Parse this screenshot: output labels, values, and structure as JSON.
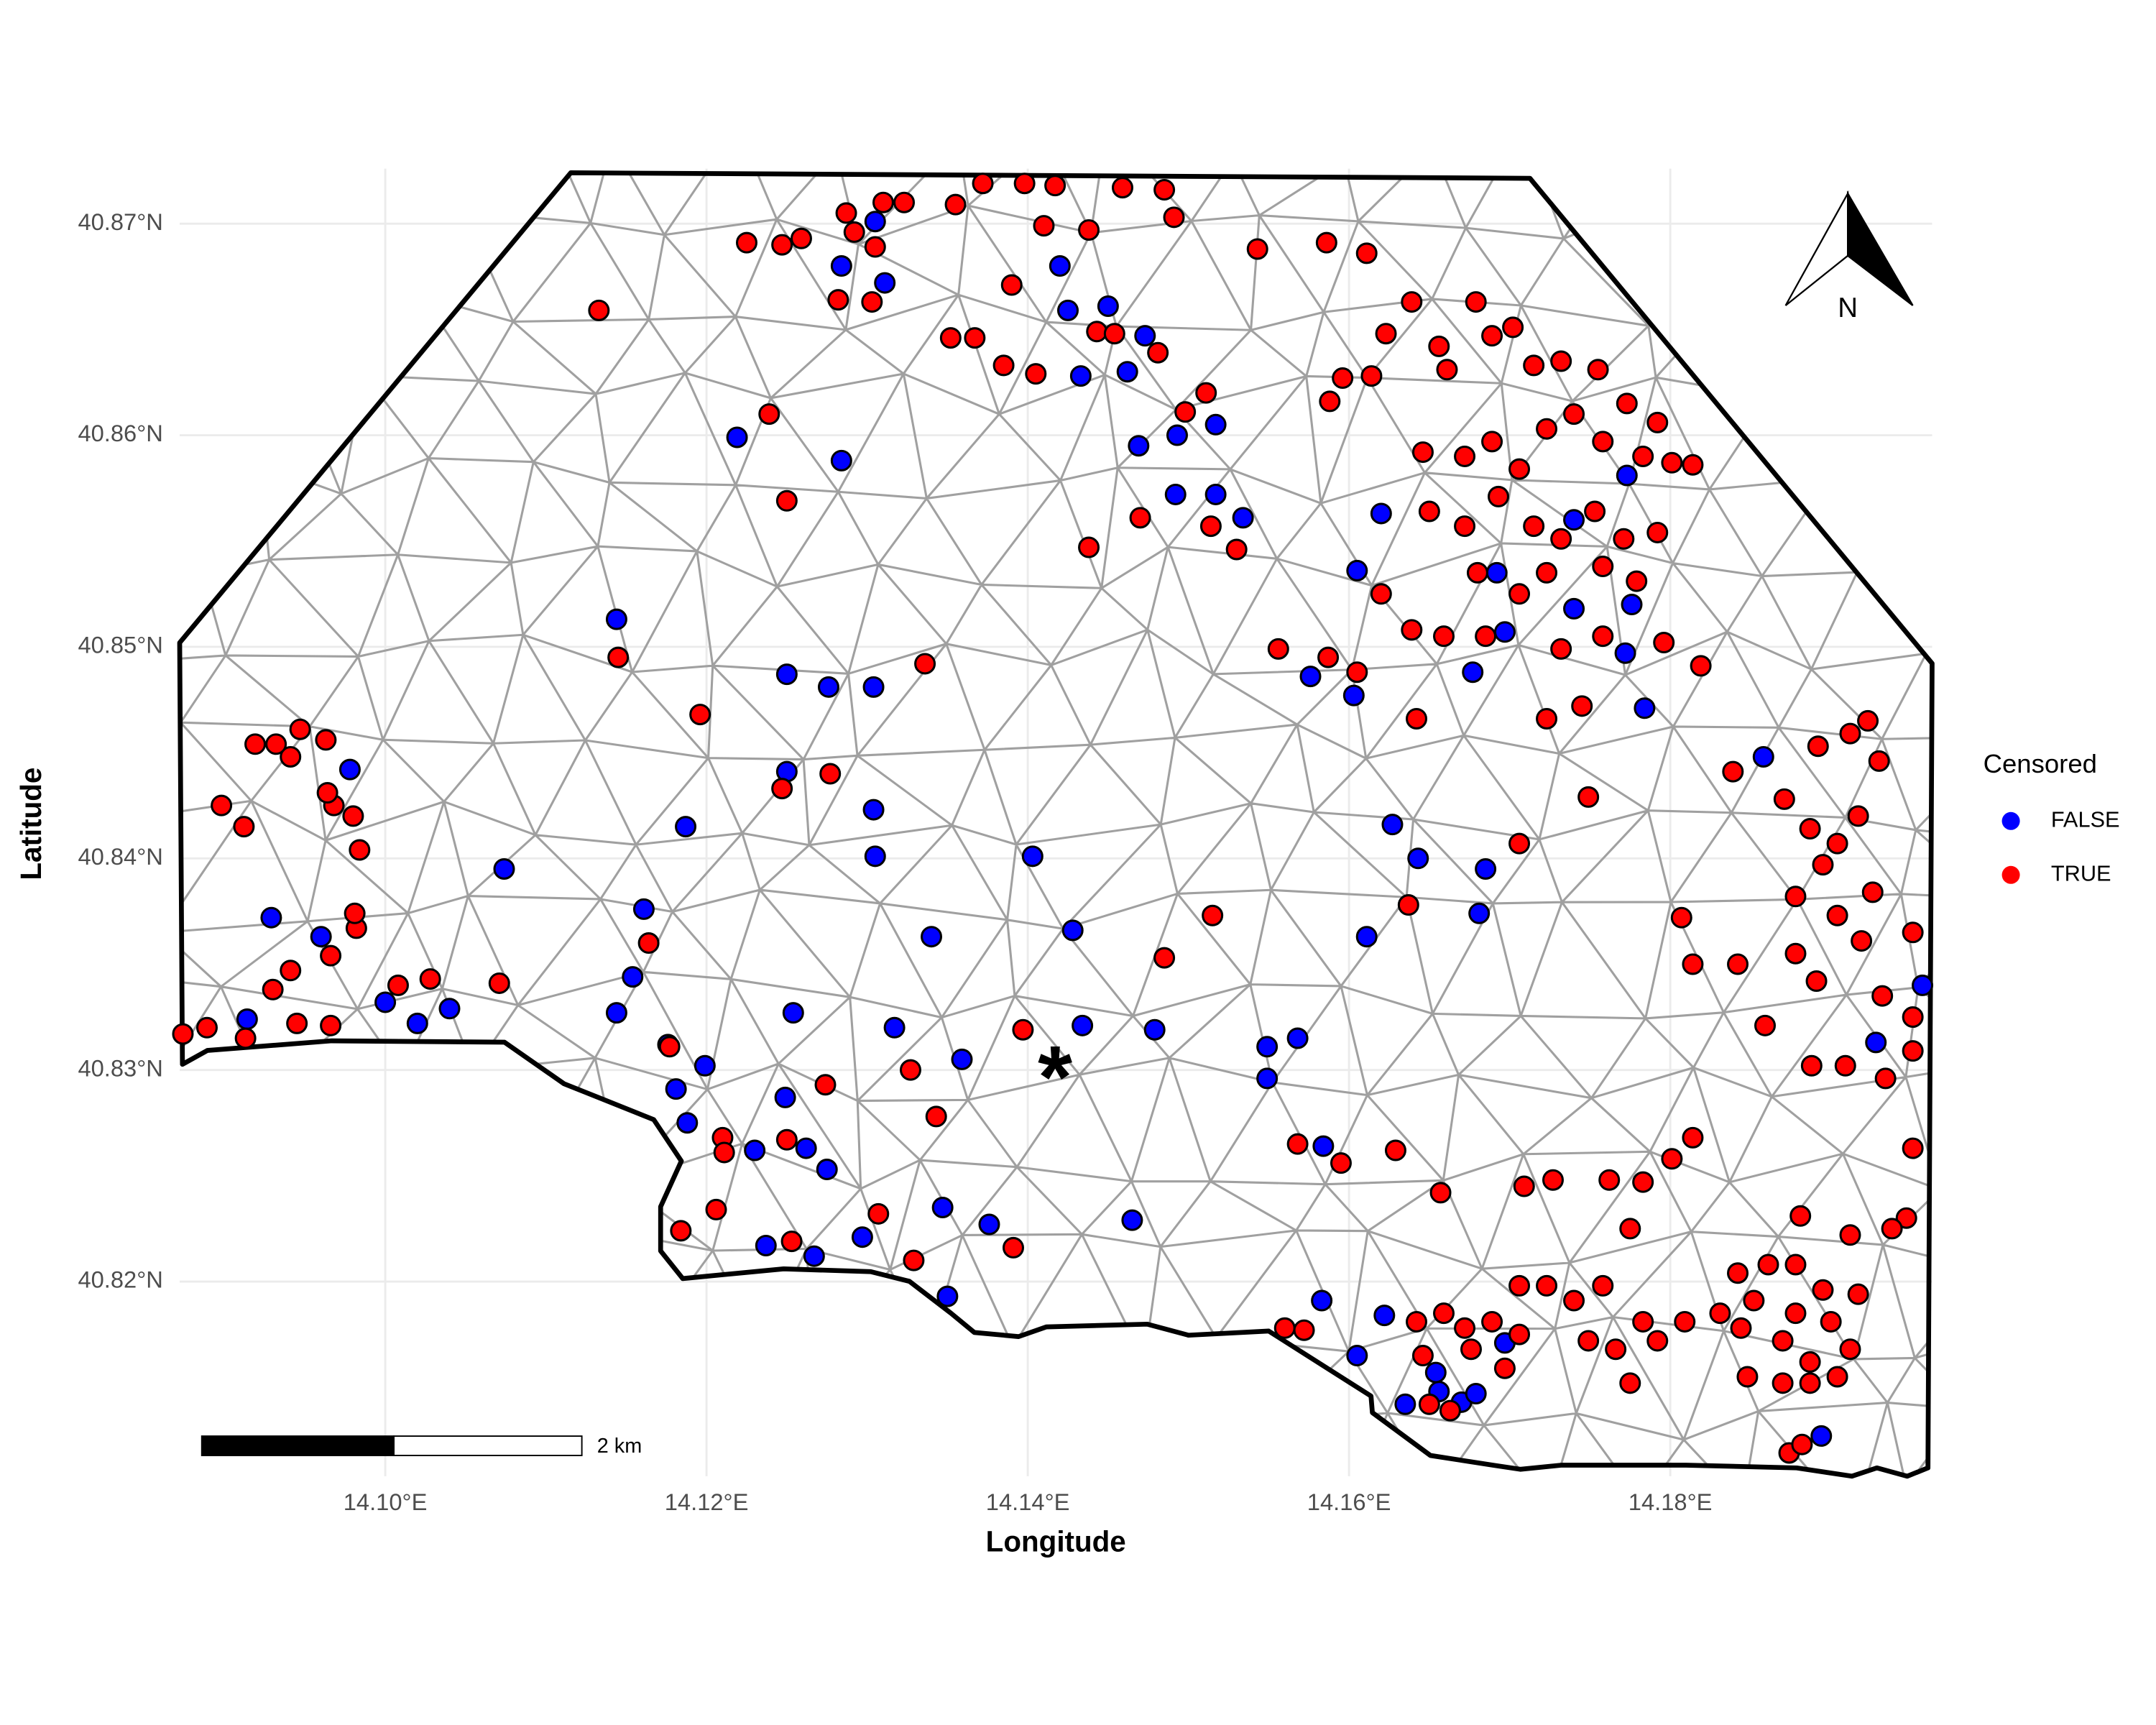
{
  "chart_data": {
    "type": "scatter",
    "x_label": "Longitude",
    "y_label": "Latitude",
    "xlim": [
      14.0872,
      14.1963
    ],
    "ylim": [
      40.8108,
      40.8726
    ],
    "xticks": [
      {
        "value": 14.1,
        "label": "14.10°E"
      },
      {
        "value": 14.12,
        "label": "14.12°E"
      },
      {
        "value": 14.14,
        "label": "14.14°E"
      },
      {
        "value": 14.16,
        "label": "14.16°E"
      },
      {
        "value": 14.18,
        "label": "14.18°E"
      }
    ],
    "yticks": [
      {
        "value": 40.82,
        "label": "40.82°N"
      },
      {
        "value": 40.83,
        "label": "40.83°N"
      },
      {
        "value": 40.84,
        "label": "40.84°N"
      },
      {
        "value": 40.85,
        "label": "40.85°N"
      },
      {
        "value": 40.86,
        "label": "40.86°N"
      },
      {
        "value": 40.87,
        "label": "40.87°N"
      }
    ],
    "grid": true,
    "legend": "right",
    "legend_title": "Censored",
    "scale_bar": "2 km",
    "north_arrow": "N",
    "annotation": {
      "text": "*",
      "x": 14.1417,
      "y": 40.8305
    },
    "series": [
      {
        "name": "FALSE",
        "color": "#0000ff",
        "x": [
          14.1284,
          14.1311,
          14.1305,
          14.1425,
          14.142,
          14.145,
          14.1473,
          14.1433,
          14.1462,
          14.1469,
          14.1493,
          14.1517,
          14.1492,
          14.1517,
          14.1534,
          14.1284,
          14.1219,
          14.1144,
          14.125,
          14.1276,
          14.1304,
          14.125,
          14.1304,
          14.1305,
          14.1187,
          14.1074,
          14.0978,
          14.0929,
          14.096,
          14.1,
          14.102,
          14.104,
          14.0914,
          14.1161,
          14.1154,
          14.1144,
          14.1254,
          14.1317,
          14.134,
          14.1403,
          14.1428,
          14.1434,
          14.1359,
          14.1181,
          14.1188,
          14.1199,
          14.1176,
          14.1249,
          14.1262,
          14.1275,
          14.123,
          14.1237,
          14.1297,
          14.1347,
          14.1376,
          14.135,
          14.1465,
          14.1267,
          14.1479,
          14.1549,
          14.1568,
          14.1549,
          14.1584,
          14.1576,
          14.1603,
          14.1627,
          14.1643,
          14.1685,
          14.1681,
          14.1611,
          14.162,
          14.1605,
          14.1697,
          14.1677,
          14.174,
          14.1773,
          14.1776,
          14.1772,
          14.1784,
          14.1858,
          14.1928,
          14.1957,
          14.1583,
          14.1622,
          14.1605,
          14.1635,
          14.1656,
          14.1654,
          14.167,
          14.1697,
          14.1894,
          14.1679,
          14.174,
          14.1692
        ],
        "y": [
          40.868,
          40.8672,
          40.8701,
          40.8659,
          40.868,
          40.8661,
          40.8647,
          40.8628,
          40.863,
          40.8595,
          40.86,
          40.8605,
          40.8572,
          40.8572,
          40.8561,
          40.8588,
          40.8599,
          40.8513,
          40.8487,
          40.8481,
          40.8481,
          40.8441,
          40.8423,
          40.8401,
          40.8415,
          40.8395,
          40.8442,
          40.8372,
          40.8363,
          40.8332,
          40.8322,
          40.8329,
          40.8324,
          40.8376,
          40.8344,
          40.8327,
          40.8327,
          40.832,
          40.8363,
          40.8401,
          40.8366,
          40.8321,
          40.8305,
          40.8291,
          40.8275,
          40.8302,
          40.8312,
          40.8287,
          40.8263,
          40.8253,
          40.8262,
          40.8217,
          40.8221,
          40.8235,
          40.8227,
          40.8193,
          40.8229,
          40.8212,
          40.8319,
          40.8311,
          40.8315,
          40.8296,
          40.8264,
          40.8486,
          40.8477,
          40.8416,
          40.84,
          40.8395,
          40.8374,
          40.8363,
          40.8563,
          40.8536,
          40.8507,
          40.8488,
          40.8518,
          40.8581,
          40.852,
          40.8497,
          40.8471,
          40.8448,
          40.8313,
          40.834,
          40.8191,
          40.8184,
          40.8165,
          40.8142,
          40.8148,
          40.8157,
          40.8143,
          40.8171,
          40.8127,
          40.8147,
          40.856,
          40.8535
        ]
      },
      {
        "name": "TRUE",
        "color": "#ff0000",
        "x": [
          14.1133,
          14.1287,
          14.131,
          14.1323,
          14.1292,
          14.1305,
          14.1282,
          14.1303,
          14.1225,
          14.1247,
          14.1259,
          14.1355,
          14.1372,
          14.1398,
          14.1417,
          14.1459,
          14.1485,
          14.1491,
          14.141,
          14.1438,
          14.1543,
          14.1586,
          14.1611,
          14.139,
          14.1352,
          14.1367,
          14.1385,
          14.1405,
          14.1443,
          14.1454,
          14.1481,
          14.1511,
          14.1498,
          14.1239,
          14.125,
          14.147,
          14.1514,
          14.153,
          14.1438,
          14.1639,
          14.1679,
          14.1623,
          14.1656,
          14.1596,
          14.1614,
          14.1588,
          14.1661,
          14.1689,
          14.1702,
          14.1715,
          14.1732,
          14.1755,
          14.1773,
          14.1792,
          14.1814,
          14.1646,
          14.1672,
          14.1689,
          14.1706,
          14.1723,
          14.174,
          14.1758,
          14.1783,
          14.1801,
          14.165,
          14.1672,
          14.1693,
          14.1715,
          14.1732,
          14.1753,
          14.1771,
          14.1792,
          14.168,
          14.1706,
          14.1723,
          14.1758,
          14.1779,
          14.162,
          14.1639,
          14.1659,
          14.1685,
          14.1758,
          14.1796,
          14.1732,
          14.1723,
          14.1745,
          14.1556,
          14.1587,
          14.1605,
          14.1642,
          14.1819,
          14.1839,
          14.1892,
          14.1912,
          14.193,
          14.1871,
          14.1887,
          14.1904,
          14.1895,
          14.1917,
          14.1878,
          14.1904,
          14.1926,
          14.1951,
          14.1749,
          14.1706,
          14.1637,
          14.1807,
          14.1814,
          14.1842,
          14.1878,
          14.1891,
          14.1932,
          14.1951,
          14.1951,
          14.1934,
          14.1951,
          14.1947,
          14.1859,
          14.1888,
          14.1909,
          14.1814,
          14.1801,
          14.1762,
          14.1783,
          14.1709,
          14.1727,
          14.1775,
          14.1881,
          14.1912,
          14.1938,
          14.1842,
          14.1861,
          14.1878,
          14.1895,
          14.1917,
          14.1852,
          14.1878,
          14.19,
          14.1844,
          14.187,
          14.1887,
          14.1912,
          14.1848,
          14.187,
          14.1887,
          14.1904,
          14.1874,
          14.1882,
          14.1783,
          14.1809,
          14.1831,
          14.1766,
          14.1792,
          14.1749,
          14.1775,
          14.1723,
          14.1706,
          14.174,
          14.1758,
          14.1642,
          14.1659,
          14.1672,
          14.1689,
          14.1706,
          14.1646,
          14.1676,
          14.1697,
          14.165,
          14.1663,
          14.156,
          14.1572,
          14.1568,
          14.1595,
          14.1629,
          14.1657,
          14.1485,
          14.1515,
          14.1397,
          14.1327,
          14.1343,
          14.1274,
          14.1277,
          14.1247,
          14.1196,
          14.1336,
          14.1145,
          14.1184,
          14.1206,
          14.1307,
          14.1329,
          14.1391,
          14.121,
          14.1211,
          14.125,
          14.1253,
          14.0874,
          14.0889,
          14.0913,
          14.093,
          14.0941,
          14.0945,
          14.0966,
          14.0966,
          14.0982,
          14.0981,
          14.098,
          14.0968,
          14.0964,
          14.0941,
          14.0947,
          14.0932,
          14.0919,
          14.0898,
          14.0912,
          14.0963,
          14.0984,
          14.1008,
          14.1028,
          14.1071,
          14.1164,
          14.1177,
          14.1923,
          14.1919
        ],
        "y": [
          40.8659,
          40.8705,
          40.871,
          40.871,
          40.8696,
          40.8689,
          40.8664,
          40.8663,
          40.8691,
          40.869,
          40.8693,
          40.8709,
          40.8719,
          40.8719,
          40.8718,
          40.8717,
          40.8716,
          40.8703,
          40.8699,
          40.8697,
          40.8688,
          40.8691,
          40.8686,
          40.8671,
          40.8646,
          40.8646,
          40.8633,
          40.8629,
          40.8649,
          40.8648,
          40.8639,
          40.862,
          40.8611,
          40.861,
          40.8569,
          40.8561,
          40.8557,
          40.8546,
          40.8547,
          40.8663,
          40.8663,
          40.8648,
          40.8642,
          40.8627,
          40.8628,
          40.8616,
          40.8631,
          40.8647,
          40.8651,
          40.8633,
          40.8635,
          40.8631,
          40.8615,
          40.8606,
          40.8586,
          40.8592,
          40.859,
          40.8597,
          40.8584,
          40.8603,
          40.861,
          40.8597,
          40.859,
          40.8587,
          40.8564,
          40.8557,
          40.8571,
          40.8557,
          40.8551,
          40.8564,
          40.8551,
          40.8554,
          40.8535,
          40.8525,
          40.8535,
          40.8538,
          40.8531,
          40.8525,
          40.8508,
          40.8505,
          40.8505,
          40.8505,
          40.8502,
          40.8499,
          40.8466,
          40.8472,
          40.8499,
          40.8495,
          40.8488,
          40.8466,
          40.8491,
          40.8441,
          40.8453,
          40.8459,
          40.8446,
          40.8428,
          40.8414,
          40.8407,
          40.8397,
          40.842,
          40.8382,
          40.8373,
          40.8384,
          40.8365,
          40.8429,
          40.8407,
          40.8378,
          40.8372,
          40.835,
          40.835,
          40.8355,
          40.8342,
          40.8335,
          40.8325,
          40.8309,
          40.8296,
          40.8263,
          40.823,
          40.8321,
          40.8302,
          40.8302,
          40.8268,
          40.8258,
          40.8248,
          40.8247,
          40.8245,
          40.8248,
          40.8225,
          40.8231,
          40.8222,
          40.8225,
          40.8204,
          40.8208,
          40.8208,
          40.8196,
          40.8194,
          40.8191,
          40.8185,
          40.8181,
          40.8178,
          40.8172,
          40.8162,
          40.8168,
          40.8155,
          40.8152,
          40.8152,
          40.8155,
          40.8119,
          40.8123,
          40.8181,
          40.8181,
          40.8185,
          40.8168,
          40.8172,
          40.8172,
          40.8152,
          40.8198,
          40.8198,
          40.8191,
          40.8198,
          40.8181,
          40.8185,
          40.8178,
          40.8181,
          40.8175,
          40.8165,
          40.8168,
          40.8159,
          40.8142,
          40.8139,
          40.8178,
          40.8177,
          40.8265,
          40.8256,
          40.8262,
          40.8242,
          40.8353,
          40.8373,
          40.8319,
          40.83,
          40.8278,
          40.8293,
          40.844,
          40.8433,
          40.8468,
          40.8492,
          40.8495,
          40.8224,
          40.8234,
          40.8232,
          40.821,
          40.8216,
          40.8268,
          40.8261,
          40.8267,
          40.8219,
          40.8317,
          40.832,
          40.8315,
          40.8338,
          40.8347,
          40.8322,
          40.8321,
          40.8354,
          40.8367,
          40.8374,
          40.842,
          40.8425,
          40.8431,
          40.8448,
          40.8461,
          40.8454,
          40.8454,
          40.8425,
          40.8415,
          40.8456,
          40.8404,
          40.834,
          40.8343,
          40.8341,
          40.836,
          40.8311,
          40.8465,
          40.8361
        ]
      }
    ]
  }
}
